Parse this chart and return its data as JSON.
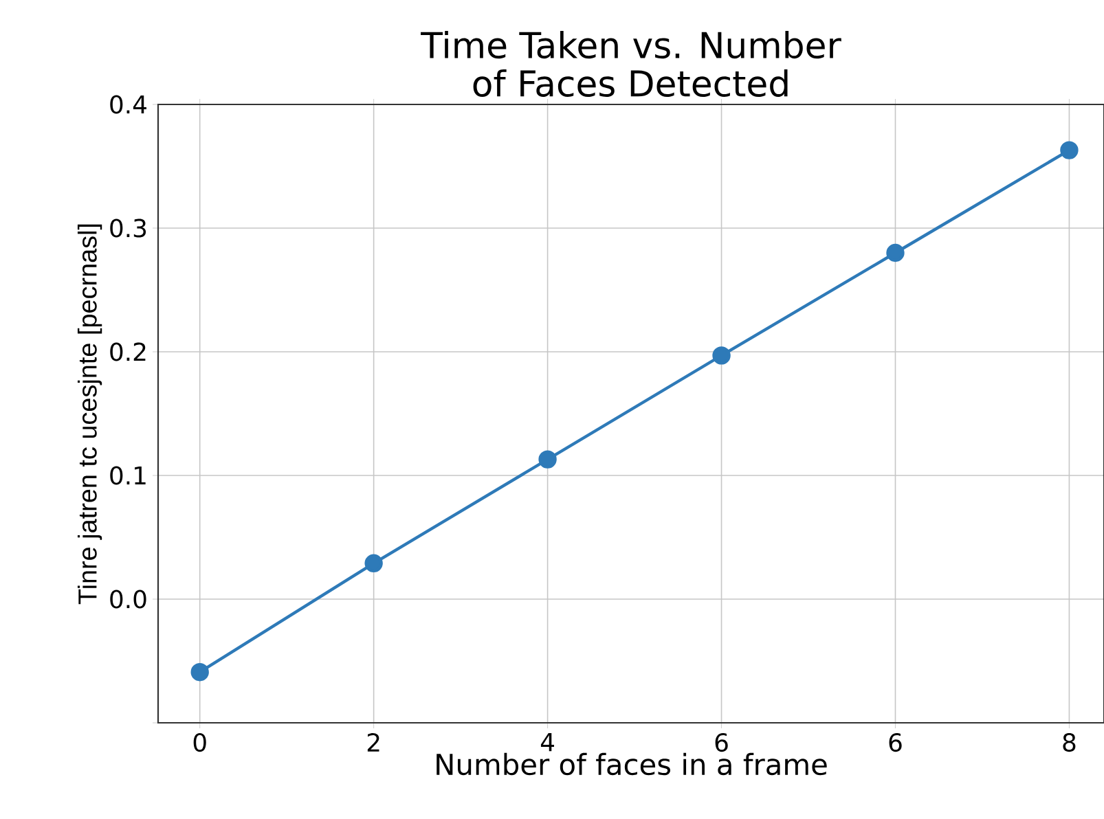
{
  "chart_data": {
    "type": "line",
    "title": "Time Taken vs. Number\nof Faces Detected",
    "xlabel": "Number of faces in a frame",
    "ylabel": "Tinre jatren tc ucesjnte [pecrnasl]",
    "categories": [
      "0",
      "2",
      "4",
      "6",
      "6",
      "8"
    ],
    "values": [
      -0.059,
      0.029,
      0.113,
      0.197,
      0.28,
      0.363
    ],
    "color": "#2e7ab8",
    "marker": "circle",
    "line_style": "solid",
    "ylim": [
      -0.1,
      0.4
    ],
    "yticks": [
      {
        "value": -0.1,
        "label": null
      },
      {
        "value": 0,
        "label": "0.0"
      },
      0.1,
      0.2,
      0.3,
      0.4
    ],
    "grid": true
  }
}
